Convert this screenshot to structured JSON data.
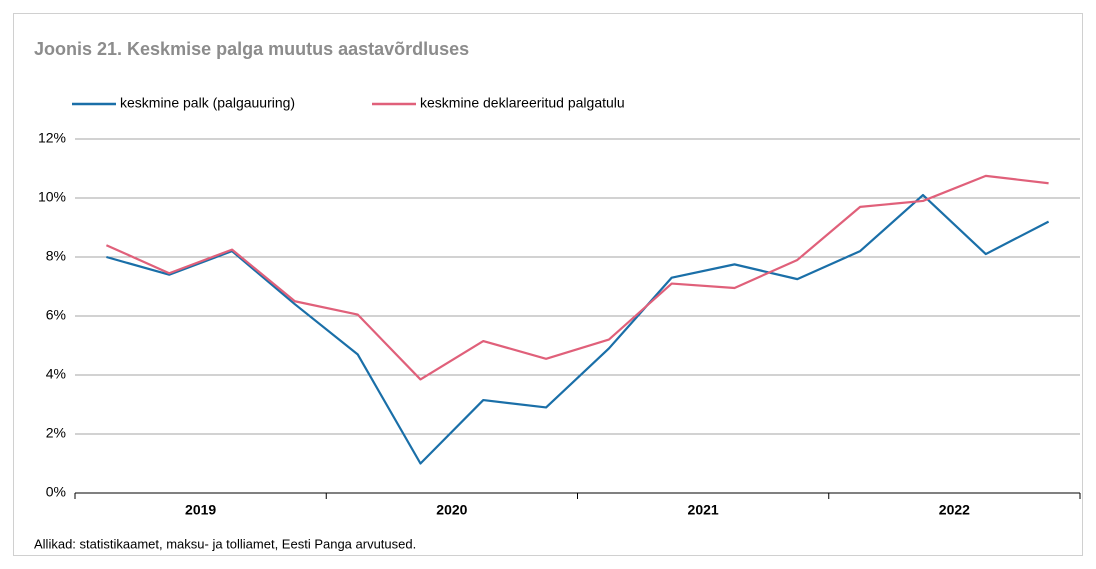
{
  "chart_data": {
    "type": "line",
    "title": "Joonis 21. Keskmise palga muutus aastavõrdluses",
    "source": "Allikad: statistikaamet, maksu- ja tolliamet, Eesti Panga arvutused.",
    "categories": [
      null,
      null,
      null,
      null,
      null,
      null,
      null,
      null,
      null,
      null,
      null,
      null,
      null,
      null,
      null,
      null
    ],
    "groups": [
      "2019",
      "2020",
      "2021",
      "2022"
    ],
    "series": [
      {
        "name": "keskmine palk (palgauuring)",
        "color": "#1a6fa8",
        "values": [
          8.0,
          7.4,
          8.2,
          6.4,
          4.7,
          1.0,
          3.15,
          2.9,
          4.9,
          7.3,
          7.75,
          7.25,
          8.2,
          10.1,
          8.1,
          9.2
        ]
      },
      {
        "name": "keskmine deklareeritud palgatulu",
        "color": "#e0607a",
        "values": [
          8.4,
          7.45,
          8.25,
          6.5,
          6.05,
          3.85,
          5.15,
          4.55,
          5.2,
          7.1,
          6.95,
          7.9,
          9.7,
          9.9,
          10.75,
          10.5
        ]
      }
    ],
    "ylim": [
      0,
      12
    ],
    "yticks": [
      {
        "value": 0,
        "label": "0%"
      },
      {
        "value": 2,
        "label": "2%"
      },
      {
        "value": 4,
        "label": "4%"
      },
      {
        "value": 6,
        "label": "6%"
      },
      {
        "value": 8,
        "label": "8%"
      },
      {
        "value": 10,
        "label": "10%"
      },
      {
        "value": 12,
        "label": "12%"
      }
    ],
    "grid": true,
    "legend": "top"
  }
}
